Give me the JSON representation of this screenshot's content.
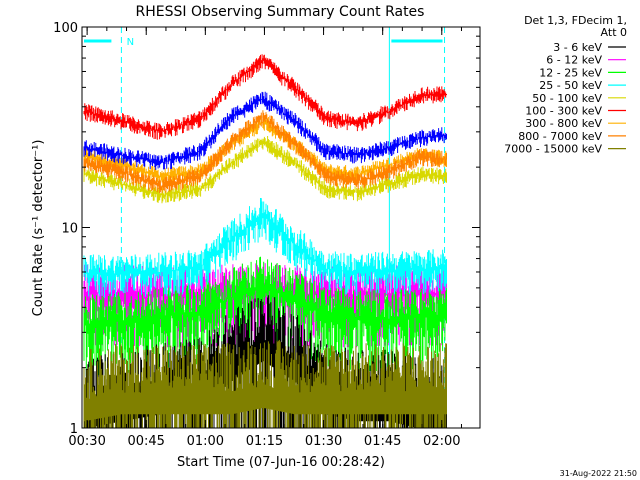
{
  "chart_data": {
    "type": "line",
    "title": "RHESSI Observing Summary Count Rates",
    "xlabel": "Start Time (07-Jun-16 00:28:42)",
    "ylabel": "Count Rate (s⁻¹ detector⁻¹)",
    "yscale": "log",
    "ylim": [
      1,
      100
    ],
    "xlim_minutes": [
      0.0,
      101.0
    ],
    "x_ticks": [
      {
        "label": "00:30",
        "t": 1.3
      },
      {
        "label": "00:45",
        "t": 16.3
      },
      {
        "label": "01:00",
        "t": 31.3
      },
      {
        "label": "01:15",
        "t": 46.3
      },
      {
        "label": "01:30",
        "t": 61.3
      },
      {
        "label": "01:45",
        "t": 76.3
      },
      {
        "label": "02:00",
        "t": 91.3
      }
    ],
    "y_ticks": [
      {
        "label": "1",
        "v": 1
      },
      {
        "label": "10",
        "v": 10
      },
      {
        "label": "100",
        "v": 100
      }
    ],
    "legend_header": [
      "Det 1,3, FDecim 1,",
      "Att 0"
    ],
    "legend_position": "right, outside plot",
    "night_label": "N",
    "night_color": "#00ffff",
    "night_intervals": [
      [
        0.0,
        10.0
      ],
      [
        78.0,
        92.0
      ]
    ],
    "data_start_minutes": 0.5,
    "data_end_minutes": 92.5,
    "x_sample_times": [
      0.5,
      10,
      20,
      30,
      38,
      46,
      54,
      62,
      70,
      78,
      86,
      92.5
    ],
    "series": [
      {
        "name": "3 - 6 keV",
        "color": "#000000",
        "values": [
          1.1,
          1.2,
          1.3,
          1.4,
          1.9,
          2.4,
          1.9,
          1.3,
          1.2,
          1.2,
          1.1,
          1.1
        ]
      },
      {
        "name": "6 - 12 keV",
        "color": "#ff00ff",
        "values": [
          4.7,
          4.7,
          4.6,
          4.6,
          4.7,
          4.8,
          4.7,
          4.6,
          4.6,
          4.7,
          4.7,
          4.7
        ]
      },
      {
        "name": "12 - 25 keV",
        "color": "#00ff00",
        "values": [
          3.3,
          3.4,
          3.6,
          3.8,
          4.5,
          5.2,
          4.4,
          3.7,
          3.5,
          3.5,
          3.6,
          3.6
        ]
      },
      {
        "name": "25 - 50 keV",
        "color": "#00ffff",
        "values": [
          5.9,
          5.9,
          6.0,
          6.3,
          8.8,
          11.5,
          8.2,
          6.2,
          6.0,
          6.1,
          6.2,
          6.3
        ]
      },
      {
        "name": "50 - 100 keV",
        "color": "#d8d800",
        "values": [
          18.5,
          16.5,
          14.5,
          15.5,
          21.0,
          27.0,
          21.0,
          15.5,
          15.0,
          16.5,
          18.5,
          18.0
        ]
      },
      {
        "name": "100 - 300 keV",
        "color": "#ff0000",
        "values": [
          38,
          34,
          30,
          35,
          52,
          68,
          50,
          35,
          33,
          38,
          46,
          46
        ]
      },
      {
        "name": "300 - 800 keV",
        "color": "#ffb000",
        "values": [
          23,
          20.5,
          18,
          19,
          26,
          34,
          26,
          19,
          18.5,
          20.5,
          23,
          22
        ]
      },
      {
        "name": "800 - 7000 keV",
        "color": "#ff8000",
        "values": [
          21,
          19,
          16,
          18,
          27,
          36,
          26,
          18,
          17,
          19,
          22.5,
          22
        ]
      },
      {
        "name": "7000 - 15000 keV",
        "color": "#808000",
        "values": [
          1.2,
          1.3,
          1.3,
          1.3,
          1.3,
          1.4,
          1.3,
          1.3,
          1.3,
          1.3,
          1.3,
          1.3
        ]
      },
      {
        "name": "",
        "color": "#0000ff",
        "values": [
          25,
          23,
          21,
          24,
          36,
          44,
          34,
          24,
          23,
          25,
          28,
          29
        ]
      }
    ]
  },
  "footer": {
    "timestamp": "31-Aug-2022 21:50"
  }
}
